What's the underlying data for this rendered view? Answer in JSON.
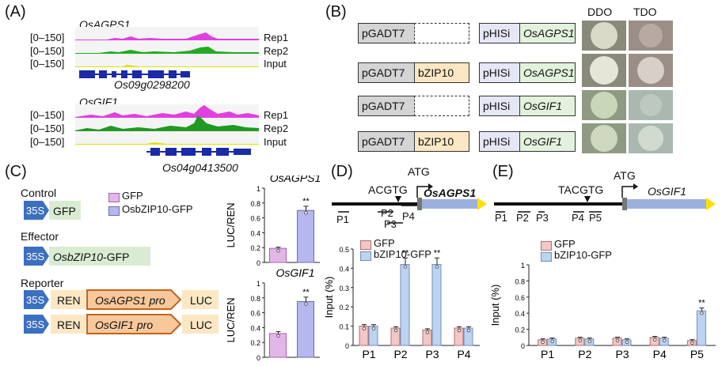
{
  "panel_labels": {
    "A": "(A)",
    "B": "(B)",
    "C": "(C)",
    "D": "(D)",
    "E": "(E)"
  },
  "panelA": {
    "top": {
      "gene": "OsAGPS1",
      "tracks": [
        {
          "range": "[0–150]",
          "label": "Rep1",
          "color": "#e040e0"
        },
        {
          "range": "[0–150]",
          "label": "Rep2",
          "color": "#22aa22"
        },
        {
          "range": "[0–150]",
          "label": "Input",
          "color": "#e0e000"
        }
      ],
      "locus": "Os09g0298200"
    },
    "bottom": {
      "gene": "OsGIF1",
      "tracks": [
        {
          "range": "[0–150]",
          "label": "Rep1",
          "color": "#e040e0"
        },
        {
          "range": "[0–150]",
          "label": "Rep2",
          "color": "#229922"
        },
        {
          "range": "[0–150]",
          "label": "Input",
          "color": "#e0e000"
        }
      ],
      "locus": "Os04g0413500"
    }
  },
  "panelB": {
    "col_headers": [
      "DDO",
      "TDO"
    ],
    "rows": [
      {
        "ad": "pGADT7",
        "insert": "",
        "bd": "pHISi",
        "bait": "OsAGPS1",
        "ddo": "growth",
        "tdo": "no growth"
      },
      {
        "ad": "pGADT7",
        "insert": "bZIP10",
        "bd": "pHISi",
        "bait": "OsAGPS1",
        "ddo": "growth",
        "tdo": "growth"
      },
      {
        "ad": "pGADT7",
        "insert": "",
        "bd": "pHISi",
        "bait": "OsGIF1",
        "ddo": "growth",
        "tdo": "no growth"
      },
      {
        "ad": "pGADT7",
        "insert": "bZIP10",
        "bd": "pHISi",
        "bait": "OsGIF1",
        "ddo": "growth",
        "tdo": "growth"
      }
    ]
  },
  "panelC": {
    "control_label": "Control",
    "effector_label": "Effector",
    "reporter_label": "Reporter",
    "promoter": "35S",
    "gfp": "GFP",
    "effector_gene": "OsbZIP10",
    "effector_suffix": "-GFP",
    "ren": "REN",
    "luc": "LUC",
    "reporter1_pro": "OsAGPS1 pro",
    "reporter2_pro": "OsGIF1 pro",
    "legend": [
      "GFP",
      "OsbZIP10-GFP"
    ],
    "colors": {
      "gfp": "#e3b6ea",
      "bzip": "#b7b7f0"
    }
  },
  "panelD": {
    "gene": "OsAGPS1",
    "motif": "ACGTG",
    "atg": "ATG",
    "primers": [
      "P1",
      "P2",
      "P3",
      "P4"
    ],
    "legend": [
      "GFP",
      "bZIP10-GFP"
    ],
    "significance": "**"
  },
  "panelE": {
    "gene": "OsGIF1",
    "motif": "TACGTG",
    "atg": "ATG",
    "primers": [
      "P1",
      "P2",
      "P3",
      "P4",
      "P5"
    ],
    "legend": [
      "GFP",
      "bZIP10-GFP"
    ],
    "significance": "**"
  },
  "chart_data": [
    {
      "type": "bar",
      "title": "OsAGPS1",
      "xlabel": "",
      "ylabel": "LUC/REN",
      "categories": [
        "GFP",
        "OsbZIP10-GFP"
      ],
      "values": [
        0.19,
        0.7
      ],
      "ylim": [
        0,
        1.0
      ],
      "yticks": [
        0,
        0.2,
        0.4,
        0.6,
        0.8,
        1.0
      ],
      "annotations": [
        {
          "category": "OsbZIP10-GFP",
          "text": "**"
        }
      ]
    },
    {
      "type": "bar",
      "title": "OsGIF1",
      "xlabel": "",
      "ylabel": "LUC/REN",
      "categories": [
        "GFP",
        "OsbZIP10-GFP"
      ],
      "values": [
        0.32,
        0.75
      ],
      "ylim": [
        0,
        1.0
      ],
      "yticks": [
        0,
        0.2,
        0.4,
        0.6,
        0.8,
        1.0
      ],
      "annotations": [
        {
          "category": "OsbZIP10-GFP",
          "text": "**"
        }
      ]
    },
    {
      "type": "bar",
      "title": "",
      "xlabel": "",
      "ylabel": "Input (%)",
      "categories": [
        "P1",
        "P2",
        "P3",
        "P4"
      ],
      "series": [
        {
          "name": "GFP",
          "values": [
            0.1,
            0.09,
            0.08,
            0.09
          ]
        },
        {
          "name": "bZIP10-GFP",
          "values": [
            0.1,
            0.42,
            0.42,
            0.09
          ]
        }
      ],
      "ylim": [
        0,
        0.5
      ],
      "yticks": [
        0,
        0.1,
        0.2,
        0.3,
        0.4,
        0.5
      ],
      "annotations": [
        {
          "category": "P2",
          "text": "**"
        },
        {
          "category": "P3",
          "text": "**"
        }
      ]
    },
    {
      "type": "bar",
      "title": "",
      "xlabel": "",
      "ylabel": "Input (%)",
      "categories": [
        "P1",
        "P2",
        "P3",
        "P4",
        "P5"
      ],
      "series": [
        {
          "name": "GFP",
          "values": [
            0.07,
            0.09,
            0.09,
            0.1,
            0.06
          ]
        },
        {
          "name": "bZIP10-GFP",
          "values": [
            0.08,
            0.08,
            0.07,
            0.09,
            0.43
          ]
        }
      ],
      "ylim": [
        0,
        1.0
      ],
      "yticks": [
        0,
        0.2,
        0.4,
        0.6,
        0.8,
        1.0
      ],
      "annotations": [
        {
          "category": "P5",
          "text": "**"
        }
      ]
    }
  ]
}
